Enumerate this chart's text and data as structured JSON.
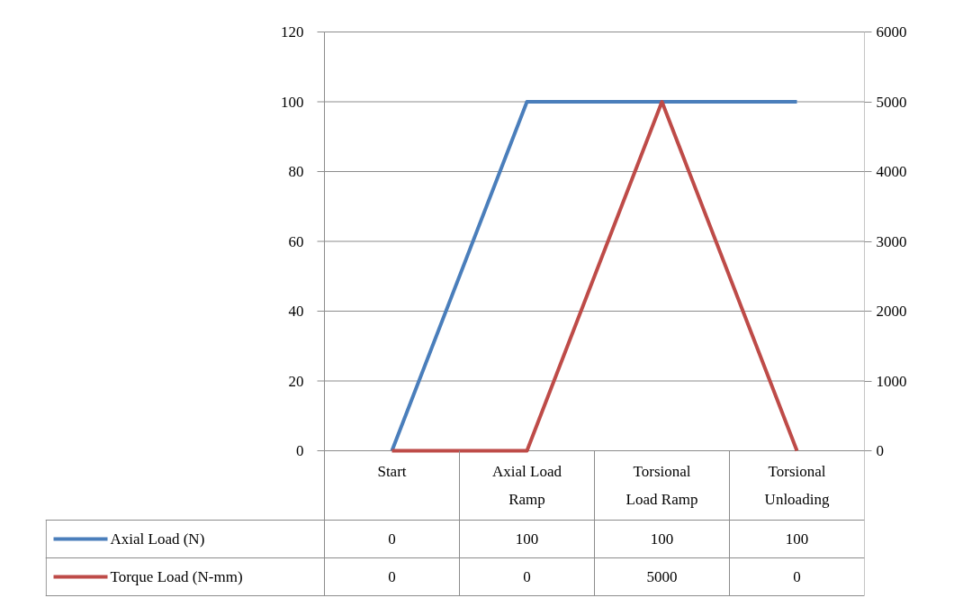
{
  "chart_data": {
    "type": "line",
    "categories": [
      "Start",
      "Axial Load Ramp",
      "Torsional Load Ramp",
      "Torsional Unloading"
    ],
    "series": [
      {
        "name": "Axial Load (N)",
        "color": "#4a7ebb",
        "values": [
          0,
          100,
          100,
          100
        ]
      },
      {
        "name": "Torque Load (N-mm)",
        "color": "#be4b48",
        "values": [
          0,
          0,
          5000,
          0
        ],
        "axis": "y2"
      }
    ],
    "ylim": [
      0,
      120
    ],
    "yticks": [
      0,
      20,
      40,
      60,
      80,
      100,
      120
    ],
    "y2lim": [
      0,
      6000
    ],
    "y2ticks": [
      0,
      1000,
      2000,
      3000,
      4000,
      5000,
      6000
    ],
    "grid": "y",
    "legend": "bottom",
    "data_labels": true,
    "marker": "none",
    "line_style": "solid"
  }
}
